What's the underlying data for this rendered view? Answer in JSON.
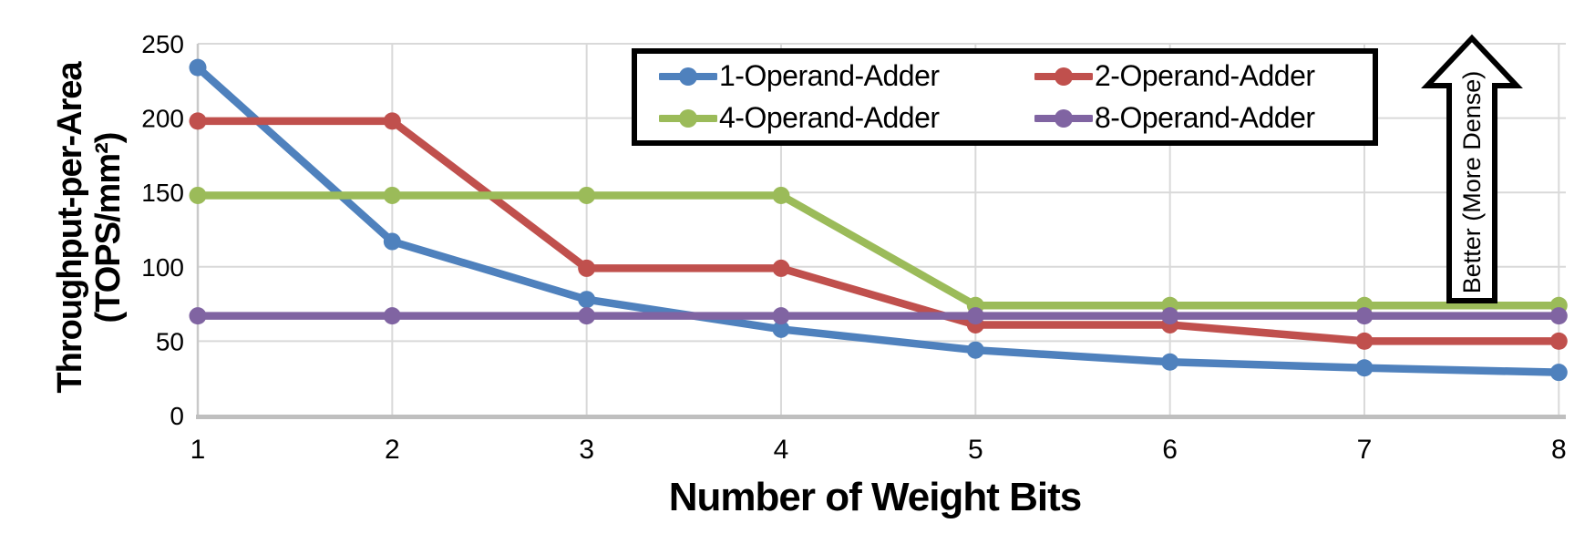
{
  "chart_data": {
    "type": "line",
    "title": "",
    "xlabel": "Number of Weight Bits",
    "ylabel": "Throughput-per-Area (TOPS/mm²)",
    "ylabel_line1": "Throughput-per-Area",
    "ylabel_line2": "(TOPS/mm²)",
    "x": [
      1,
      2,
      3,
      4,
      5,
      6,
      7,
      8
    ],
    "xlim": [
      1,
      8
    ],
    "ylim": [
      0,
      250
    ],
    "yticks": [
      0,
      50,
      100,
      150,
      200,
      250
    ],
    "grid": true,
    "legend_position": "top-center",
    "series": [
      {
        "name": "1-Operand-Adder",
        "color": "#4F81BD",
        "values": [
          234,
          117,
          78,
          58,
          44,
          36,
          32,
          29
        ]
      },
      {
        "name": "2-Operand-Adder",
        "color": "#C0504D",
        "values": [
          198,
          198,
          99,
          99,
          61,
          61,
          50,
          50
        ]
      },
      {
        "name": "4-Operand-Adder",
        "color": "#9BBB59",
        "values": [
          148,
          148,
          148,
          148,
          74,
          74,
          74,
          74
        ]
      },
      {
        "name": "8-Operand-Adder",
        "color": "#8064A2",
        "values": [
          67,
          67,
          67,
          67,
          67,
          67,
          67,
          67
        ]
      }
    ],
    "annotation_arrow": {
      "label": "Better (More Dense)",
      "direction": "up"
    },
    "colors": {
      "gridline": "#D9D9D9",
      "axis": "#BFBFBF",
      "text": "#000000"
    }
  }
}
